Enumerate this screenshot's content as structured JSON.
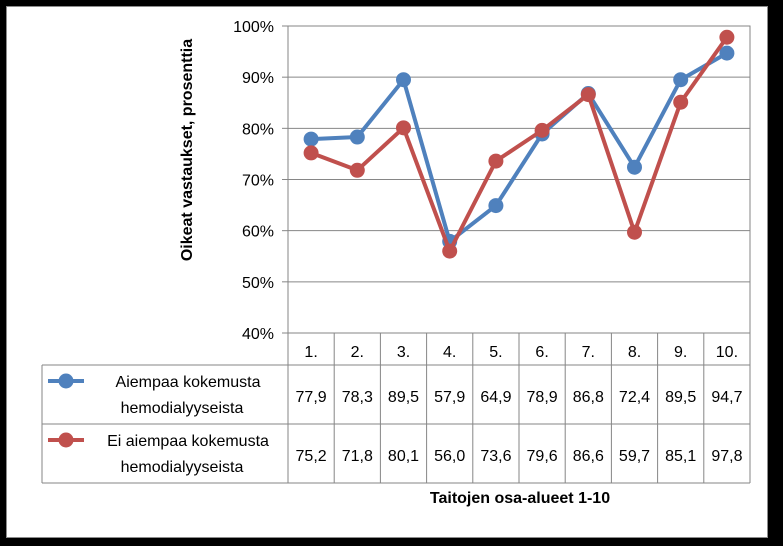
{
  "chart_data": {
    "type": "line",
    "categories": [
      "1.",
      "2.",
      "3.",
      "4.",
      "5.",
      "6.",
      "7.",
      "8.",
      "9.",
      "10."
    ],
    "ylabel": "Oikeat vastaukset, prosenttia",
    "xlabel": "Taitojen osa-alueet 1-10",
    "ylim": [
      40,
      100
    ],
    "y_ticks": [
      "40%",
      "50%",
      "60%",
      "70%",
      "80%",
      "90%",
      "100%"
    ],
    "y_tick_values": [
      40,
      50,
      60,
      70,
      80,
      90,
      100
    ],
    "grid": true,
    "legend": "table-below",
    "series": [
      {
        "name_line1": "Aiempaa kokemusta",
        "name_line2": "hemodialyyseista",
        "color": "#4f81bd",
        "values": [
          77.9,
          78.3,
          89.5,
          57.9,
          64.9,
          78.9,
          86.8,
          72.4,
          89.5,
          94.7
        ],
        "labels": [
          "77,9",
          "78,3",
          "89,5",
          "57,9",
          "64,9",
          "78,9",
          "86,8",
          "72,4",
          "89,5",
          "94,7"
        ]
      },
      {
        "name_line1": "Ei aiempaa kokemusta",
        "name_line2": "hemodialyyseista",
        "color": "#c0504d",
        "values": [
          75.2,
          71.8,
          80.1,
          56.0,
          73.6,
          79.6,
          86.6,
          59.7,
          85.1,
          97.8
        ],
        "labels": [
          "75,2",
          "71,8",
          "80,1",
          "56,0",
          "73,6",
          "79,6",
          "86,6",
          "59,7",
          "85,1",
          "97,8"
        ]
      }
    ]
  }
}
